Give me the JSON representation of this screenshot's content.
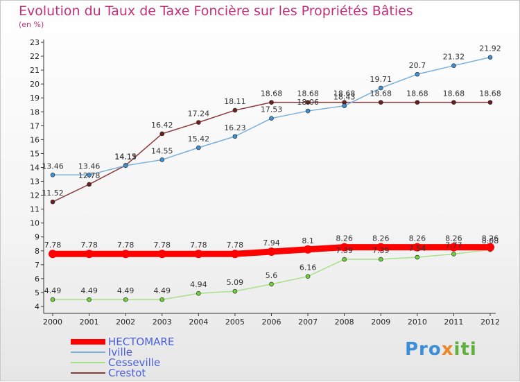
{
  "title": "Evolution du Taux de Taxe Foncière sur les Propriétés Bâties",
  "subtitle": "(en %)",
  "logo": {
    "part1": "Pro",
    "part2": "x",
    "part3": "iti"
  },
  "chart_data": {
    "type": "line",
    "x": [
      "2000",
      "2001",
      "2002",
      "2003",
      "2004",
      "2005",
      "2006",
      "2007",
      "2008",
      "2009",
      "2010",
      "2011",
      "2012"
    ],
    "ylim": [
      4,
      23
    ],
    "yticks": [
      4,
      5,
      6,
      7,
      8,
      9,
      10,
      11,
      12,
      13,
      14,
      15,
      16,
      17,
      18,
      19,
      20,
      21,
      22,
      23
    ],
    "grid": false,
    "legend": "bottom-left",
    "series": [
      {
        "name": "HECTOMARE",
        "color": "#ff0000",
        "width": 9,
        "values": [
          7.78,
          7.78,
          7.78,
          7.78,
          7.78,
          7.78,
          7.94,
          8.1,
          8.26,
          8.26,
          8.26,
          8.26,
          8.26
        ],
        "labels": [
          "7.78",
          "7.78",
          "7.78",
          "7.78",
          "7.78",
          "7.78",
          "7.94",
          "8.1",
          "8.26",
          "8.26",
          "8.26",
          "8.26",
          "8.26"
        ]
      },
      {
        "name": "Iville",
        "color": "#7ab0d8",
        "width": 1.5,
        "marker": "#3f8fd0",
        "values": [
          13.46,
          13.46,
          14.13,
          14.55,
          15.42,
          16.23,
          17.53,
          18.06,
          18.43,
          19.71,
          20.7,
          21.32,
          21.92
        ],
        "labels": [
          "13.46",
          "13.46",
          "14.13",
          "14.55",
          "15.42",
          "16.23",
          "17.53",
          "18.06",
          "18.43",
          "19.71",
          "20.7",
          "21.32",
          "21.92"
        ]
      },
      {
        "name": "Cesseville",
        "color": "#a8e08a",
        "width": 1.5,
        "marker": "#6fd03a",
        "values": [
          4.49,
          4.49,
          4.49,
          4.49,
          4.94,
          5.09,
          5.6,
          6.16,
          7.39,
          7.39,
          7.54,
          7.77,
          8.08
        ],
        "labels": [
          "4.49",
          "4.49",
          "4.49",
          "4.49",
          "4.94",
          "5.09",
          "5.6",
          "6.16",
          "7.39",
          "7.39",
          "7.54",
          "7.77",
          "8.08"
        ]
      },
      {
        "name": "Crestot",
        "color": "#8a3a3a",
        "width": 1.5,
        "marker": "#6a1f1f",
        "values": [
          11.52,
          12.78,
          14.15,
          16.42,
          17.24,
          18.11,
          18.68,
          18.68,
          18.68,
          18.68,
          18.68,
          18.68,
          18.68
        ],
        "labels": [
          "11.52",
          "12.78",
          "14.15",
          "16.42",
          "17.24",
          "18.11",
          "18.68",
          "18.68",
          "18.68",
          "18.68",
          "18.68",
          "18.68",
          "18.68"
        ]
      }
    ]
  }
}
